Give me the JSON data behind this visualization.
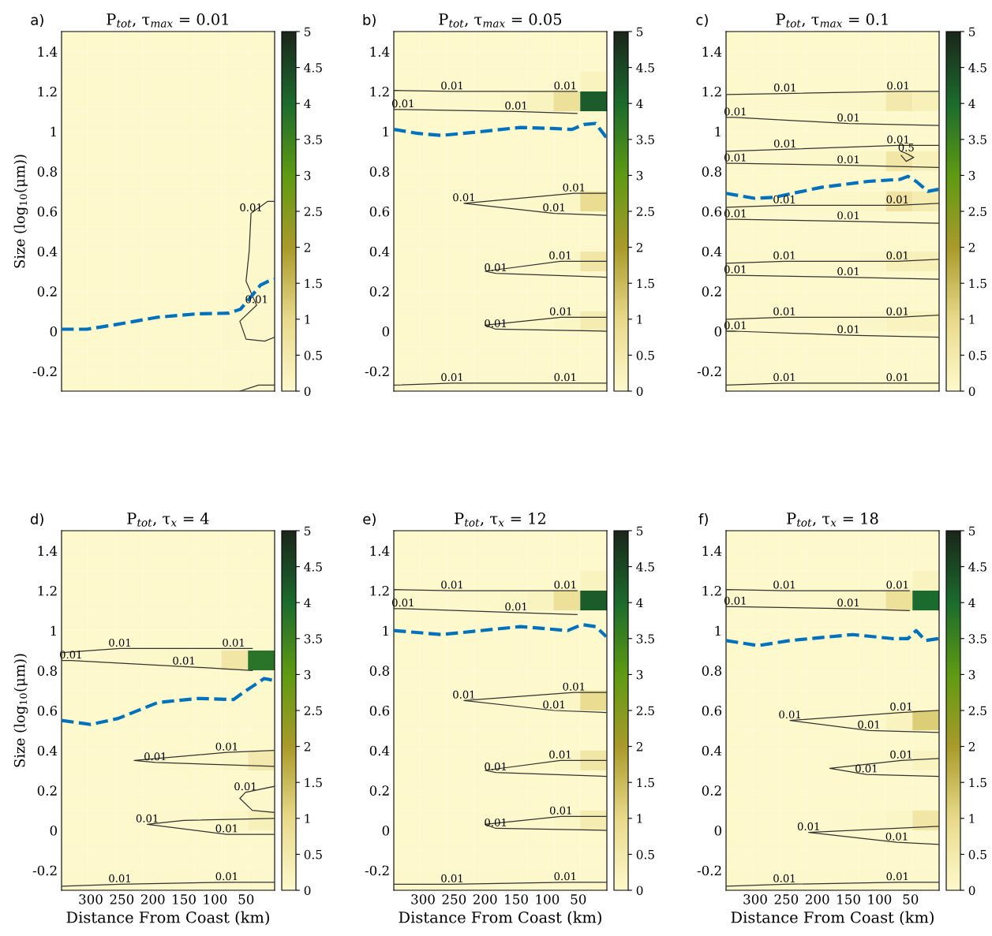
{
  "chart_data": [
    {
      "type": "heatmap",
      "title": "P$_{tot}$, τ$_{max}$ = 0.01",
      "ylabel": "Size (log$_{10}$(μm))",
      "tick_labels": "y",
      "xlim": [
        347,
        4
      ],
      "xticks": [
        300,
        250,
        200,
        150,
        100,
        50
      ],
      "ylim": [
        -0.3,
        1.5
      ],
      "yticks": [
        -0.2,
        0,
        0.2,
        0.4,
        0.6,
        0.8,
        1,
        1.2,
        1.4
      ],
      "clim": [
        0,
        5
      ],
      "cticks": [
        0,
        0.5,
        1,
        1.5,
        2,
        2.5,
        3,
        3.5,
        4,
        4.5,
        5
      ],
      "colors": [
        "#fdf9cc",
        "#e8d98a",
        "#a99a2a",
        "#5f9a12",
        "#1c6b2e",
        "#1a261a"
      ],
      "cells": [
        [
          0,
          0,
          0,
          0,
          0,
          0,
          0,
          0
        ],
        [
          0,
          0,
          0,
          0,
          0,
          0,
          0,
          0
        ],
        [
          0,
          0,
          0,
          0,
          0,
          0,
          0,
          0
        ],
        [
          0,
          0,
          0,
          0,
          0,
          0,
          0,
          0
        ],
        [
          0,
          0,
          0,
          0,
          0,
          0,
          0,
          0
        ],
        [
          0,
          0,
          0,
          0,
          0,
          0,
          0,
          0
        ],
        [
          0,
          0,
          0,
          0,
          0,
          0,
          0,
          0
        ],
        [
          0,
          0,
          0,
          0,
          0,
          0,
          0,
          0
        ],
        [
          0,
          0,
          0,
          0,
          0,
          0,
          0,
          0
        ],
        [
          0,
          0,
          0,
          0,
          0,
          0,
          0,
          0.03
        ],
        [
          0,
          0,
          0,
          0,
          0,
          0,
          0,
          0.03
        ],
        [
          0,
          0,
          0,
          0,
          0,
          0,
          0,
          0.03
        ],
        [
          0,
          0,
          0,
          0,
          0,
          0,
          0,
          0.03
        ],
        [
          0,
          0,
          0,
          0,
          0,
          0,
          0.02,
          0.03
        ],
        [
          0,
          0,
          0,
          0,
          0,
          0,
          0.02,
          0.03
        ],
        [
          0,
          0,
          0,
          0,
          0,
          0,
          0.02,
          0.03
        ],
        [
          0,
          0,
          0,
          0,
          0,
          0,
          0,
          0
        ],
        [
          0,
          0,
          0,
          0,
          0,
          0,
          0.02,
          0.02
        ]
      ],
      "series": [
        {
          "type": "line",
          "color": "#0072bd",
          "line_style": "dashed",
          "x": [
            347,
            306,
            256,
            192,
            128,
            78,
            59,
            40,
            27,
            14,
            4
          ],
          "values": [
            0.01,
            0.01,
            0.035,
            0.07,
            0.087,
            0.09,
            0.11,
            0.18,
            0.23,
            0.25,
            0.26
          ]
        },
        {
          "type": "line",
          "color": "#333333",
          "line_style": "solid",
          "x": [
            4,
            15,
            42,
            45,
            50,
            33,
            60,
            50,
            20,
            4
          ],
          "values": [
            0.65,
            0.65,
            0.59,
            0.4,
            0.25,
            0.13,
            0.05,
            -0.04,
            -0.05,
            -0.03
          ]
        },
        {
          "type": "line",
          "color": "#333333",
          "line_style": "solid",
          "x": [
            60,
            30,
            4
          ],
          "values": [
            -0.3,
            -0.27,
            -0.27
          ]
        }
      ],
      "annotations": [
        "a)",
        {
          "text": "0.01",
          "x": 42,
          "y": 0.59
        },
        {
          "text": "0.01",
          "x": 33,
          "y": 0.13
        }
      ]
    },
    {
      "type": "heatmap",
      "title": "P$_{tot}$, τ$_{max}$ = 0.05",
      "tick_labels": "y",
      "xlim": [
        347,
        4
      ],
      "xticks": [
        300,
        250,
        200,
        150,
        100,
        50
      ],
      "ylim": [
        -0.3,
        1.5
      ],
      "yticks": [
        -0.2,
        0,
        0.2,
        0.4,
        0.6,
        0.8,
        1,
        1.2,
        1.4
      ],
      "clim": [
        0,
        5
      ],
      "cticks": [
        0,
        0.5,
        1,
        1.5,
        2,
        2.5,
        3,
        3.5,
        4,
        4.5,
        5
      ],
      "colors": [
        "#fdf9cc",
        "#e8d98a",
        "#a99a2a",
        "#5f9a12",
        "#1c6b2e",
        "#1a261a"
      ],
      "cells": [
        [
          0,
          0,
          0,
          0,
          0,
          0,
          0,
          0
        ],
        [
          0,
          0,
          0,
          0,
          0,
          0,
          0,
          0
        ],
        [
          0,
          0,
          0,
          0,
          0,
          0,
          0,
          0.2
        ],
        [
          0.02,
          0.02,
          0.03,
          0.05,
          0.1,
          0.2,
          0.8,
          4.2
        ],
        [
          0,
          0,
          0,
          0,
          0,
          0,
          0,
          0
        ],
        [
          0,
          0,
          0,
          0,
          0,
          0,
          0,
          0
        ],
        [
          0,
          0,
          0,
          0,
          0,
          0,
          0,
          0
        ],
        [
          0,
          0,
          0,
          0,
          0,
          0,
          0,
          0
        ],
        [
          0,
          0,
          0,
          0.02,
          0.03,
          0.05,
          0.1,
          0.9
        ],
        [
          0,
          0,
          0,
          0,
          0,
          0,
          0,
          0
        ],
        [
          0,
          0,
          0,
          0,
          0,
          0,
          0,
          0
        ],
        [
          0,
          0,
          0,
          0,
          0.02,
          0.04,
          0.1,
          0.6
        ],
        [
          0,
          0,
          0,
          0,
          0,
          0,
          0,
          0
        ],
        [
          0,
          0,
          0,
          0,
          0,
          0,
          0,
          0
        ],
        [
          0,
          0,
          0,
          0,
          0.02,
          0.04,
          0.1,
          0.4
        ],
        [
          0,
          0,
          0,
          0,
          0,
          0,
          0,
          0
        ],
        [
          0,
          0,
          0,
          0,
          0,
          0,
          0,
          0
        ],
        [
          0.02,
          0.02,
          0.02,
          0.02,
          0.02,
          0.02,
          0.02,
          0.02
        ]
      ],
      "series": [
        {
          "type": "line",
          "color": "#0072bd",
          "line_style": "dashed",
          "x": [
            347,
            308,
            270,
            219,
            143,
            92,
            60,
            41,
            22,
            5
          ],
          "values": [
            1.01,
            0.99,
            0.98,
            0.995,
            1.02,
            1.015,
            1.01,
            1.035,
            1.04,
            0.97
          ]
        },
        {
          "type": "line",
          "color": "#333333",
          "line_style": "solid",
          "x": [
            52,
            71,
            253,
            347,
            347,
            332,
            150,
            52
          ],
          "values": [
            1.2,
            1.2,
            1.2,
            1.205,
            1.11,
            1.11,
            1.1,
            1.09
          ]
        },
        {
          "type": "line",
          "color": "#333333",
          "line_style": "solid",
          "x": [
            5,
            57,
            234,
            89,
            5
          ],
          "values": [
            0.69,
            0.69,
            0.64,
            0.59,
            0.58
          ]
        },
        {
          "type": "line",
          "color": "#333333",
          "line_style": "solid",
          "x": [
            5,
            79,
            200,
            183,
            5
          ],
          "values": [
            0.35,
            0.35,
            0.3,
            0.29,
            0.27
          ]
        },
        {
          "type": "line",
          "color": "#333333",
          "line_style": "solid",
          "x": [
            5,
            78,
            200,
            183,
            5
          ],
          "values": [
            0.07,
            0.07,
            0.03,
            0.01,
            0.0
          ]
        },
        {
          "type": "line",
          "color": "#333333",
          "line_style": "solid",
          "x": [
            5,
            71,
            253,
            347
          ],
          "values": [
            -0.26,
            -0.26,
            -0.26,
            -0.27
          ]
        }
      ],
      "annotations": [
        "b)",
        {
          "text": "0.01",
          "x": 253,
          "y": 1.2
        },
        {
          "text": "0.01",
          "x": 332,
          "y": 1.11
        },
        {
          "text": "0.01",
          "x": 150,
          "y": 1.1
        },
        {
          "text": "0.01",
          "x": 71,
          "y": 1.2
        },
        {
          "text": "0.01",
          "x": 234,
          "y": 0.64
        },
        {
          "text": "0.01",
          "x": 57,
          "y": 0.69
        },
        {
          "text": "0.01",
          "x": 89,
          "y": 0.59
        },
        {
          "text": "0.01",
          "x": 79,
          "y": 0.35
        },
        {
          "text": "0.01",
          "x": 183,
          "y": 0.29
        },
        {
          "text": "0.01",
          "x": 78,
          "y": 0.07
        },
        {
          "text": "0.01",
          "x": 183,
          "y": 0.01
        },
        {
          "text": "0.01",
          "x": 253,
          "y": -0.26
        },
        {
          "text": "0.01",
          "x": 71,
          "y": -0.26
        }
      ]
    },
    {
      "type": "heatmap",
      "title": "P$_{tot}$, τ$_{max}$ = 0.1",
      "tick_labels": "y",
      "xlim": [
        347,
        4
      ],
      "xticks": [
        300,
        250,
        200,
        150,
        100,
        50
      ],
      "ylim": [
        -0.3,
        1.5
      ],
      "yticks": [
        -0.2,
        0,
        0.2,
        0.4,
        0.6,
        0.8,
        1,
        1.2,
        1.4
      ],
      "clim": [
        0,
        5
      ],
      "cticks": [
        0,
        0.5,
        1,
        1.5,
        2,
        2.5,
        3,
        3.5,
        4,
        4.5,
        5
      ],
      "colors": [
        "#fdf9cc",
        "#e8d98a",
        "#a99a2a",
        "#5f9a12",
        "#1c6b2e",
        "#1a261a"
      ],
      "cells": [
        [
          0,
          0,
          0,
          0,
          0,
          0,
          0,
          0
        ],
        [
          0,
          0,
          0,
          0,
          0,
          0,
          0,
          0
        ],
        [
          0,
          0,
          0,
          0,
          0,
          0,
          0,
          0
        ],
        [
          0.02,
          0.02,
          0.03,
          0.04,
          0.06,
          0.1,
          0.5,
          0.3
        ],
        [
          0,
          0,
          0,
          0,
          0,
          0,
          0,
          0
        ],
        [
          0,
          0,
          0,
          0,
          0,
          0,
          0,
          0
        ],
        [
          0.02,
          0.02,
          0.03,
          0.04,
          0.06,
          0.1,
          0.6,
          0.3
        ],
        [
          0,
          0,
          0,
          0,
          0,
          0,
          0,
          0
        ],
        [
          0.02,
          0.02,
          0.03,
          0.04,
          0.06,
          0.1,
          0.7,
          0.4
        ],
        [
          0,
          0,
          0,
          0,
          0,
          0,
          0,
          0
        ],
        [
          0,
          0,
          0,
          0,
          0,
          0,
          0,
          0
        ],
        [
          0.02,
          0.02,
          0.03,
          0.04,
          0.05,
          0.08,
          0.3,
          0.3
        ],
        [
          0,
          0,
          0,
          0,
          0,
          0,
          0,
          0
        ],
        [
          0,
          0,
          0,
          0,
          0,
          0,
          0,
          0
        ],
        [
          0.02,
          0.02,
          0.03,
          0.04,
          0.05,
          0.08,
          0.2,
          0.2
        ],
        [
          0,
          0,
          0,
          0,
          0,
          0,
          0,
          0
        ],
        [
          0,
          0,
          0,
          0,
          0,
          0,
          0,
          0
        ],
        [
          0.02,
          0.02,
          0.02,
          0.02,
          0.02,
          0.02,
          0.02,
          0.02
        ]
      ],
      "series": [
        {
          "type": "line",
          "color": "#0072bd",
          "line_style": "dashed",
          "x": [
            347,
            301,
            270,
            194,
            118,
            67,
            54,
            41,
            22,
            5
          ],
          "values": [
            0.69,
            0.665,
            0.67,
            0.72,
            0.75,
            0.76,
            0.775,
            0.75,
            0.7,
            0.71
          ]
        },
        {
          "type": "line",
          "color": "#333333",
          "line_style": "solid",
          "x": [
            5,
            70,
            252,
            347,
            347,
            332,
            150,
            5
          ],
          "values": [
            1.2,
            1.2,
            1.19,
            1.185,
            1.07,
            1.07,
            1.04,
            1.03
          ]
        },
        {
          "type": "line",
          "color": "#333333",
          "line_style": "solid",
          "x": [
            5,
            70,
            252,
            347,
            347,
            332,
            150,
            5
          ],
          "values": [
            0.93,
            0.93,
            0.91,
            0.9,
            0.84,
            0.84,
            0.83,
            0.82
          ]
        },
        {
          "type": "line",
          "color": "#333333",
          "line_style": "solid",
          "x": [
            65,
            57,
            45,
            57,
            65
          ],
          "values": [
            0.9,
            0.89,
            0.87,
            0.85,
            0.88
          ]
        },
        {
          "type": "line",
          "color": "#333333",
          "line_style": "solid",
          "x": [
            5,
            71,
            253,
            347,
            347,
            332,
            150,
            5
          ],
          "values": [
            0.64,
            0.63,
            0.63,
            0.62,
            0.56,
            0.56,
            0.55,
            0.54
          ]
        },
        {
          "type": "line",
          "color": "#333333",
          "line_style": "solid",
          "x": [
            5,
            71,
            253,
            347,
            347,
            332,
            150,
            5
          ],
          "values": [
            0.36,
            0.35,
            0.35,
            0.34,
            0.28,
            0.28,
            0.27,
            0.26
          ]
        },
        {
          "type": "line",
          "color": "#333333",
          "line_style": "solid",
          "x": [
            5,
            71,
            253,
            347,
            347,
            332,
            150,
            5
          ],
          "values": [
            0.08,
            0.07,
            0.07,
            0.06,
            0.0,
            0.0,
            -0.02,
            -0.03
          ]
        },
        {
          "type": "line",
          "color": "#333333",
          "line_style": "solid",
          "x": [
            5,
            71,
            253,
            347
          ],
          "values": [
            -0.26,
            -0.26,
            -0.26,
            -0.27
          ]
        }
      ],
      "annotations": [
        "c)",
        {
          "text": "0.01",
          "x": 252,
          "y": 1.19
        },
        {
          "text": "0.01",
          "x": 332,
          "y": 1.07
        },
        {
          "text": "0.01",
          "x": 150,
          "y": 1.04
        },
        {
          "text": "0.01",
          "x": 70,
          "y": 1.2
        },
        {
          "text": "0.01",
          "x": 252,
          "y": 0.91
        },
        {
          "text": "0.01",
          "x": 332,
          "y": 0.84
        },
        {
          "text": "0.01",
          "x": 150,
          "y": 0.83
        },
        {
          "text": "0.01",
          "x": 70,
          "y": 0.93
        },
        {
          "text": "0.5",
          "x": 57,
          "y": 0.89
        },
        {
          "text": "0.01",
          "x": 253,
          "y": 0.63
        },
        {
          "text": "0.01",
          "x": 332,
          "y": 0.56
        },
        {
          "text": "0.01",
          "x": 150,
          "y": 0.55
        },
        {
          "text": "0.01",
          "x": 71,
          "y": 0.63
        },
        {
          "text": "0.01",
          "x": 253,
          "y": 0.35
        },
        {
          "text": "0.01",
          "x": 332,
          "y": 0.28
        },
        {
          "text": "0.01",
          "x": 150,
          "y": 0.27
        },
        {
          "text": "0.01",
          "x": 71,
          "y": 0.35
        },
        {
          "text": "0.01",
          "x": 253,
          "y": 0.07
        },
        {
          "text": "0.01",
          "x": 332,
          "y": 0.0
        },
        {
          "text": "0.01",
          "x": 150,
          "y": -0.02
        },
        {
          "text": "0.01",
          "x": 71,
          "y": 0.07
        },
        {
          "text": "0.01",
          "x": 253,
          "y": -0.26
        },
        {
          "text": "0.01",
          "x": 71,
          "y": -0.26
        }
      ]
    },
    {
      "type": "heatmap",
      "title": "P$_{tot}$, τ$_{x}$ = 4",
      "ylabel": "Size (log$_{10}$(μm))",
      "xlabel": "Distance From Coast (km)",
      "xlim": [
        347,
        4
      ],
      "xticks": [
        300,
        250,
        200,
        150,
        100,
        50
      ],
      "ylim": [
        -0.3,
        1.5
      ],
      "yticks": [
        -0.2,
        0,
        0.2,
        0.4,
        0.6,
        0.8,
        1,
        1.2,
        1.4
      ],
      "clim": [
        0,
        5
      ],
      "cticks": [
        0,
        0.5,
        1,
        1.5,
        2,
        2.5,
        3,
        3.5,
        4,
        4.5,
        5
      ],
      "colors": [
        "#fdf9cc",
        "#e8d98a",
        "#a99a2a",
        "#5f9a12",
        "#1c6b2e",
        "#1a261a"
      ],
      "cells": [
        [
          0,
          0,
          0,
          0,
          0,
          0,
          0,
          0
        ],
        [
          0,
          0,
          0,
          0,
          0,
          0,
          0,
          0
        ],
        [
          0,
          0,
          0,
          0,
          0,
          0,
          0,
          0
        ],
        [
          0,
          0,
          0,
          0,
          0,
          0,
          0,
          0
        ],
        [
          0,
          0,
          0,
          0,
          0,
          0,
          0,
          0
        ],
        [
          0,
          0,
          0,
          0,
          0,
          0,
          0,
          0
        ],
        [
          0.02,
          0.02,
          0.03,
          0.04,
          0.06,
          0.1,
          0.6,
          3.8
        ],
        [
          0,
          0,
          0,
          0,
          0,
          0,
          0,
          0
        ],
        [
          0,
          0,
          0,
          0,
          0,
          0,
          0,
          0
        ],
        [
          0,
          0,
          0,
          0,
          0,
          0,
          0,
          0
        ],
        [
          0,
          0,
          0,
          0,
          0,
          0,
          0,
          0
        ],
        [
          0,
          0,
          0,
          0.02,
          0.03,
          0.05,
          0.1,
          0.5
        ],
        [
          0,
          0,
          0,
          0,
          0,
          0,
          0,
          0
        ],
        [
          0,
          0,
          0,
          0,
          0,
          0,
          0,
          0.02
        ],
        [
          0,
          0,
          0,
          0.02,
          0.03,
          0.05,
          0.1,
          0.3
        ],
        [
          0,
          0,
          0,
          0,
          0,
          0,
          0,
          0
        ],
        [
          0,
          0,
          0,
          0,
          0,
          0,
          0,
          0
        ],
        [
          0.02,
          0.02,
          0.02,
          0.02,
          0.02,
          0.02,
          0.02,
          0.02
        ]
      ],
      "series": [
        {
          "type": "line",
          "color": "#0072bd",
          "line_style": "dashed",
          "x": [
            347,
            300,
            256,
            192,
            128,
            70,
            59,
            40,
            21,
            4
          ],
          "values": [
            0.55,
            0.53,
            0.56,
            0.64,
            0.66,
            0.655,
            0.68,
            0.72,
            0.76,
            0.75
          ]
        },
        {
          "type": "line",
          "color": "#333333",
          "line_style": "solid",
          "x": [
            40,
            70,
            253,
            347,
            347,
            332,
            150,
            40
          ],
          "values": [
            0.91,
            0.91,
            0.91,
            0.89,
            0.85,
            0.85,
            0.82,
            0.8
          ]
        },
        {
          "type": "line",
          "color": "#333333",
          "line_style": "solid",
          "x": [
            5,
            81,
            230,
            196,
            5
          ],
          "values": [
            0.4,
            0.39,
            0.35,
            0.34,
            0.32
          ]
        },
        {
          "type": "line",
          "color": "#333333",
          "line_style": "solid",
          "x": [
            5,
            51,
            60,
            40,
            5
          ],
          "values": [
            0.22,
            0.19,
            0.16,
            0.1,
            0.09
          ]
        },
        {
          "type": "line",
          "color": "#333333",
          "line_style": "solid",
          "x": [
            5,
            150,
            209,
            81,
            5
          ],
          "values": [
            0.06,
            0.05,
            0.03,
            -0.02,
            -0.02
          ]
        },
        {
          "type": "line",
          "color": "#333333",
          "line_style": "solid",
          "x": [
            5,
            81,
            253,
            347
          ],
          "values": [
            -0.26,
            -0.26,
            -0.27,
            -0.28
          ]
        }
      ],
      "annotations": [
        "d)",
        {
          "text": "0.01",
          "x": 253,
          "y": 0.91
        },
        {
          "text": "0.01",
          "x": 332,
          "y": 0.85
        },
        {
          "text": "0.01",
          "x": 150,
          "y": 0.82
        },
        {
          "text": "0.01",
          "x": 70,
          "y": 0.91
        },
        {
          "text": "0.01",
          "x": 81,
          "y": 0.39
        },
        {
          "text": "0.01",
          "x": 196,
          "y": 0.34
        },
        {
          "text": "0.01",
          "x": 51,
          "y": 0.19
        },
        {
          "text": "0.01",
          "x": 209,
          "y": 0.03
        },
        {
          "text": "0.01",
          "x": 81,
          "y": -0.02
        },
        {
          "text": "0.01",
          "x": 253,
          "y": -0.27
        },
        {
          "text": "0.01",
          "x": 81,
          "y": -0.26
        }
      ]
    },
    {
      "type": "heatmap",
      "title": "P$_{tot}$, τ$_{x}$ = 12",
      "xlabel": "Distance From Coast (km)",
      "xlim": [
        347,
        4
      ],
      "xticks": [
        300,
        250,
        200,
        150,
        100,
        50
      ],
      "ylim": [
        -0.3,
        1.5
      ],
      "yticks": [
        -0.2,
        0,
        0.2,
        0.4,
        0.6,
        0.8,
        1,
        1.2,
        1.4
      ],
      "clim": [
        0,
        5
      ],
      "cticks": [
        0,
        0.5,
        1,
        1.5,
        2,
        2.5,
        3,
        3.5,
        4,
        4.5,
        5
      ],
      "colors": [
        "#fdf9cc",
        "#e8d98a",
        "#a99a2a",
        "#5f9a12",
        "#1c6b2e",
        "#1a261a"
      ],
      "cells": [
        [
          0,
          0,
          0,
          0,
          0,
          0,
          0,
          0
        ],
        [
          0,
          0,
          0,
          0,
          0,
          0,
          0,
          0
        ],
        [
          0,
          0,
          0,
          0,
          0,
          0,
          0,
          0.2
        ],
        [
          0.02,
          0.02,
          0.03,
          0.05,
          0.1,
          0.2,
          0.8,
          4.2
        ],
        [
          0,
          0,
          0,
          0,
          0,
          0,
          0,
          0
        ],
        [
          0,
          0,
          0,
          0,
          0,
          0,
          0,
          0
        ],
        [
          0,
          0,
          0,
          0,
          0,
          0,
          0,
          0
        ],
        [
          0,
          0,
          0,
          0,
          0,
          0,
          0,
          0
        ],
        [
          0,
          0,
          0,
          0.02,
          0.03,
          0.05,
          0.1,
          0.9
        ],
        [
          0,
          0,
          0,
          0,
          0,
          0,
          0,
          0
        ],
        [
          0,
          0,
          0,
          0,
          0,
          0,
          0,
          0
        ],
        [
          0,
          0,
          0,
          0,
          0.02,
          0.04,
          0.1,
          0.6
        ],
        [
          0,
          0,
          0,
          0,
          0,
          0,
          0,
          0
        ],
        [
          0,
          0,
          0,
          0,
          0,
          0,
          0,
          0
        ],
        [
          0,
          0,
          0,
          0,
          0.02,
          0.04,
          0.1,
          0.4
        ],
        [
          0,
          0,
          0,
          0,
          0,
          0,
          0,
          0
        ],
        [
          0,
          0,
          0,
          0,
          0,
          0,
          0,
          0
        ],
        [
          0.02,
          0.02,
          0.02,
          0.02,
          0.02,
          0.02,
          0.02,
          0.02
        ]
      ],
      "series": [
        {
          "type": "line",
          "color": "#0072bd",
          "line_style": "dashed",
          "x": [
            347,
            270,
            143,
            67,
            44,
            22,
            5
          ],
          "values": [
            1.0,
            0.98,
            1.02,
            1.0,
            1.03,
            1.02,
            0.97
          ]
        },
        {
          "type": "line",
          "color": "#333333",
          "line_style": "solid",
          "x": [
            52,
            71,
            253,
            347,
            347,
            332,
            150,
            52
          ],
          "values": [
            1.2,
            1.2,
            1.2,
            1.205,
            1.11,
            1.11,
            1.09,
            1.08
          ]
        },
        {
          "type": "line",
          "color": "#333333",
          "line_style": "solid",
          "x": [
            5,
            57,
            234,
            89,
            5
          ],
          "values": [
            0.69,
            0.69,
            0.65,
            0.6,
            0.59
          ]
        },
        {
          "type": "line",
          "color": "#333333",
          "line_style": "solid",
          "x": [
            5,
            79,
            200,
            183,
            5
          ],
          "values": [
            0.35,
            0.35,
            0.3,
            0.29,
            0.27
          ]
        },
        {
          "type": "line",
          "color": "#333333",
          "line_style": "solid",
          "x": [
            5,
            78,
            200,
            183,
            5
          ],
          "values": [
            0.07,
            0.07,
            0.03,
            0.01,
            0.0
          ]
        },
        {
          "type": "line",
          "color": "#333333",
          "line_style": "solid",
          "x": [
            5,
            71,
            253,
            347
          ],
          "values": [
            -0.26,
            -0.26,
            -0.27,
            -0.27
          ]
        }
      ],
      "annotations": [
        "e)",
        {
          "text": "0.01",
          "x": 253,
          "y": 1.2
        },
        {
          "text": "0.01",
          "x": 332,
          "y": 1.11
        },
        {
          "text": "0.01",
          "x": 150,
          "y": 1.09
        },
        {
          "text": "0.01",
          "x": 71,
          "y": 1.2
        },
        {
          "text": "0.01",
          "x": 234,
          "y": 0.65
        },
        {
          "text": "0.01",
          "x": 57,
          "y": 0.69
        },
        {
          "text": "0.01",
          "x": 89,
          "y": 0.6
        },
        {
          "text": "0.01",
          "x": 79,
          "y": 0.35
        },
        {
          "text": "0.01",
          "x": 183,
          "y": 0.29
        },
        {
          "text": "0.01",
          "x": 78,
          "y": 0.07
        },
        {
          "text": "0.01",
          "x": 183,
          "y": 0.01
        },
        {
          "text": "0.01",
          "x": 253,
          "y": -0.27
        },
        {
          "text": "0.01",
          "x": 71,
          "y": -0.26
        }
      ]
    },
    {
      "type": "heatmap",
      "title": "P$_{tot}$, τ$_{x}$ = 18",
      "xlabel": "Distance From Coast (km)",
      "xlim": [
        347,
        4
      ],
      "xticks": [
        300,
        250,
        200,
        150,
        100,
        50
      ],
      "ylim": [
        -0.3,
        1.5
      ],
      "yticks": [
        -0.2,
        0,
        0.2,
        0.4,
        0.6,
        0.8,
        1,
        1.2,
        1.4
      ],
      "clim": [
        0,
        5
      ],
      "cticks": [
        0,
        0.5,
        1,
        1.5,
        2,
        2.5,
        3,
        3.5,
        4,
        4.5,
        5
      ],
      "colors": [
        "#fdf9cc",
        "#e8d98a",
        "#a99a2a",
        "#5f9a12",
        "#1c6b2e",
        "#1a261a"
      ],
      "cells": [
        [
          0,
          0,
          0,
          0,
          0,
          0,
          0,
          0
        ],
        [
          0,
          0,
          0,
          0,
          0,
          0,
          0,
          0
        ],
        [
          0,
          0,
          0,
          0,
          0,
          0,
          0,
          0.2
        ],
        [
          0.02,
          0.02,
          0.03,
          0.05,
          0.1,
          0.2,
          0.8,
          4.0
        ],
        [
          0,
          0,
          0,
          0,
          0,
          0,
          0,
          0
        ],
        [
          0,
          0,
          0,
          0,
          0,
          0,
          0,
          0
        ],
        [
          0,
          0,
          0,
          0,
          0,
          0,
          0,
          0
        ],
        [
          0,
          0,
          0,
          0,
          0,
          0,
          0,
          0
        ],
        [
          0,
          0,
          0,
          0,
          0,
          0,
          0,
          0
        ],
        [
          0,
          0,
          0,
          0.02,
          0.03,
          0.05,
          0.2,
          1.2
        ],
        [
          0,
          0,
          0,
          0,
          0,
          0,
          0,
          0
        ],
        [
          0,
          0,
          0,
          0,
          0.02,
          0.04,
          0.08,
          0.2
        ],
        [
          0,
          0,
          0,
          0,
          0,
          0,
          0,
          0
        ],
        [
          0,
          0,
          0,
          0,
          0,
          0,
          0,
          0
        ],
        [
          0,
          0,
          0,
          0,
          0.02,
          0.04,
          0.1,
          0.6
        ],
        [
          0,
          0,
          0,
          0,
          0,
          0,
          0,
          0
        ],
        [
          0,
          0,
          0,
          0,
          0,
          0,
          0,
          0
        ],
        [
          0.02,
          0.02,
          0.02,
          0.02,
          0.02,
          0.02,
          0.02,
          0.02
        ]
      ],
      "series": [
        {
          "type": "line",
          "color": "#0072bd",
          "line_style": "dashed",
          "x": [
            347,
            295,
            244,
            143,
            80,
            54,
            41,
            26,
            5
          ],
          "values": [
            0.95,
            0.925,
            0.95,
            0.98,
            0.96,
            0.96,
            1.0,
            0.95,
            0.96
          ]
        },
        {
          "type": "line",
          "color": "#333333",
          "line_style": "solid",
          "x": [
            52,
            71,
            253,
            347,
            347,
            332,
            150,
            52
          ],
          "values": [
            1.2,
            1.2,
            1.2,
            1.205,
            1.12,
            1.12,
            1.11,
            1.1
          ]
        },
        {
          "type": "line",
          "color": "#333333",
          "line_style": "solid",
          "x": [
            5,
            65,
            244,
            117,
            5
          ],
          "values": [
            0.6,
            0.59,
            0.55,
            0.5,
            0.49
          ]
        },
        {
          "type": "line",
          "color": "#333333",
          "line_style": "solid",
          "x": [
            5,
            65,
            180,
            121,
            5
          ],
          "values": [
            0.36,
            0.35,
            0.31,
            0.28,
            0.27
          ]
        },
        {
          "type": "line",
          "color": "#333333",
          "line_style": "solid",
          "x": [
            5,
            214,
            72,
            5
          ],
          "values": [
            0.02,
            -0.01,
            -0.06,
            -0.07
          ]
        },
        {
          "type": "line",
          "color": "#333333",
          "line_style": "solid",
          "x": [
            5,
            71,
            253,
            347
          ],
          "values": [
            -0.26,
            -0.26,
            -0.27,
            -0.28
          ]
        }
      ],
      "annotations": [
        "f)",
        {
          "text": "0.01",
          "x": 253,
          "y": 1.2
        },
        {
          "text": "0.01",
          "x": 332,
          "y": 1.12
        },
        {
          "text": "0.01",
          "x": 150,
          "y": 1.11
        },
        {
          "text": "0.01",
          "x": 71,
          "y": 1.2
        },
        {
          "text": "0.01",
          "x": 244,
          "y": 0.55
        },
        {
          "text": "0.01",
          "x": 65,
          "y": 0.59
        },
        {
          "text": "0.01",
          "x": 117,
          "y": 0.5
        },
        {
          "text": "0.01",
          "x": 65,
          "y": 0.35
        },
        {
          "text": "0.01",
          "x": 121,
          "y": 0.28
        },
        {
          "text": "0.01",
          "x": 214,
          "y": -0.01
        },
        {
          "text": "0.01",
          "x": 72,
          "y": -0.06
        },
        {
          "text": "0.01",
          "x": 253,
          "y": -0.27
        },
        {
          "text": "0.01",
          "x": 71,
          "y": -0.26
        }
      ]
    }
  ]
}
